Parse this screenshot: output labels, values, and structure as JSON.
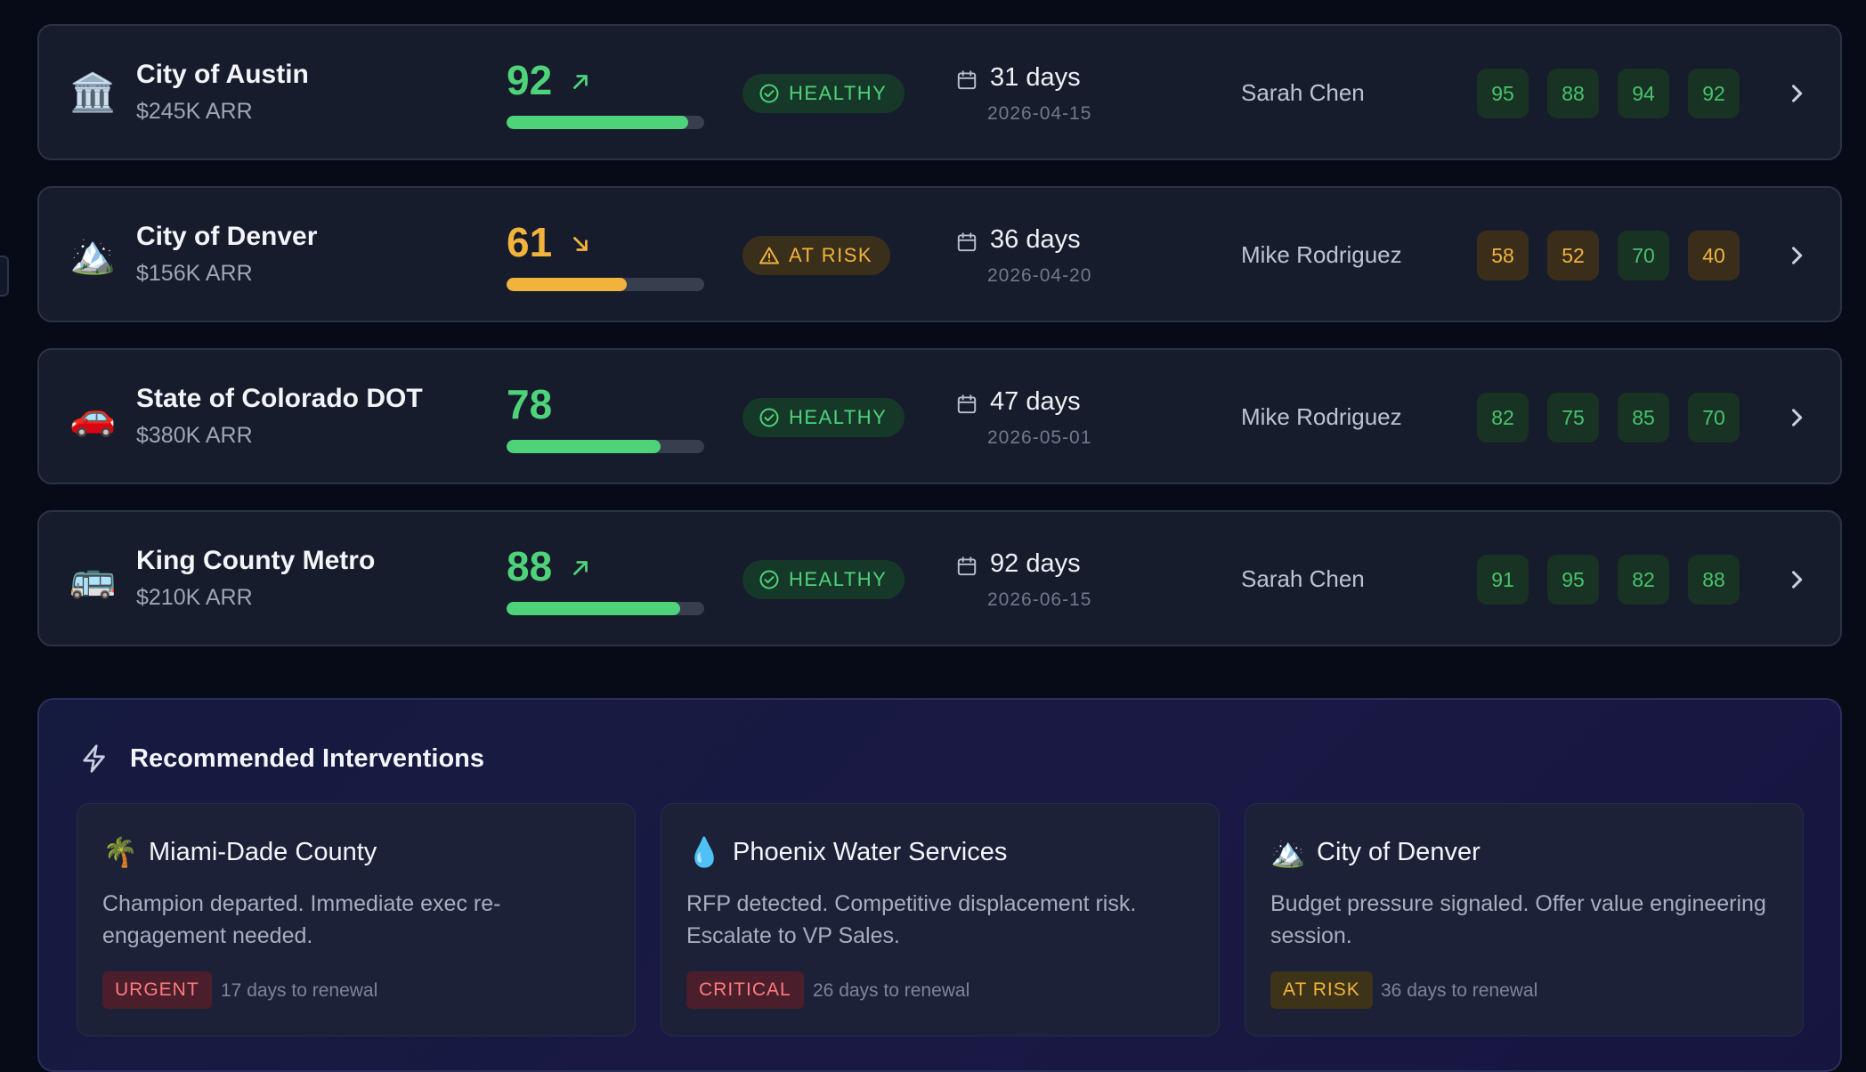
{
  "accounts": [
    {
      "emoji": "🏛️",
      "name": "City of Austin",
      "arr": "$245K ARR",
      "score": "92",
      "score_fraction": 0.92,
      "trend": "up",
      "status": "HEALTHY",
      "days": "31 days",
      "date": "2026-04-15",
      "owner": "Sarah Chen",
      "chips": [
        "95",
        "88",
        "94",
        "92"
      ]
    },
    {
      "emoji": "🏔️",
      "name": "City of Denver",
      "arr": "$156K ARR",
      "score": "61",
      "score_fraction": 0.61,
      "trend": "down",
      "status": "AT RISK",
      "days": "36 days",
      "date": "2026-04-20",
      "owner": "Mike Rodriguez",
      "chips": [
        "58",
        "52",
        "70",
        "40"
      ]
    },
    {
      "emoji": "🚗",
      "name": "State of Colorado DOT",
      "arr": "$380K ARR",
      "score": "78",
      "score_fraction": 0.78,
      "trend": "none",
      "status": "HEALTHY",
      "days": "47 days",
      "date": "2026-05-01",
      "owner": "Mike Rodriguez",
      "chips": [
        "82",
        "75",
        "85",
        "70"
      ]
    },
    {
      "emoji": "🚌",
      "name": "King County Metro",
      "arr": "$210K ARR",
      "score": "88",
      "score_fraction": 0.88,
      "trend": "up",
      "status": "HEALTHY",
      "days": "92 days",
      "date": "2026-06-15",
      "owner": "Sarah Chen",
      "chips": [
        "91",
        "95",
        "82",
        "88"
      ]
    }
  ],
  "interventions": {
    "title": "Recommended Interventions",
    "cards": [
      {
        "emoji": "🌴",
        "name": "Miami-Dade County",
        "description": "Champion departed. Immediate exec re-engagement needed.",
        "tag": "URGENT",
        "note": "17 days to renewal"
      },
      {
        "emoji": "💧",
        "name": "Phoenix Water Services",
        "description": "RFP detected. Competitive displacement risk. Escalate to VP Sales.",
        "tag": "CRITICAL",
        "note": "26 days to renewal"
      },
      {
        "emoji": "🏔️",
        "name": "City of Denver",
        "description": "Budget pressure signaled. Offer value engineering session.",
        "tag": "AT RISK",
        "note": "36 days to renewal"
      }
    ]
  },
  "colors": {
    "healthy": "#4ed27a",
    "at_risk": "#f2b33d",
    "good_chip": "#47c46c",
    "warn_chip": "#f2b33d",
    "urgent": "#ff7a7f",
    "background": "#070b18",
    "card": "#161c2b"
  },
  "icons": {
    "trend_up": "arrow-up-right-icon",
    "trend_down": "arrow-down-right-icon",
    "healthy": "check-circle-icon",
    "at_risk": "warning-triangle-icon",
    "date": "calendar-icon",
    "open": "chevron-right-icon",
    "interventions": "lightning-icon"
  }
}
